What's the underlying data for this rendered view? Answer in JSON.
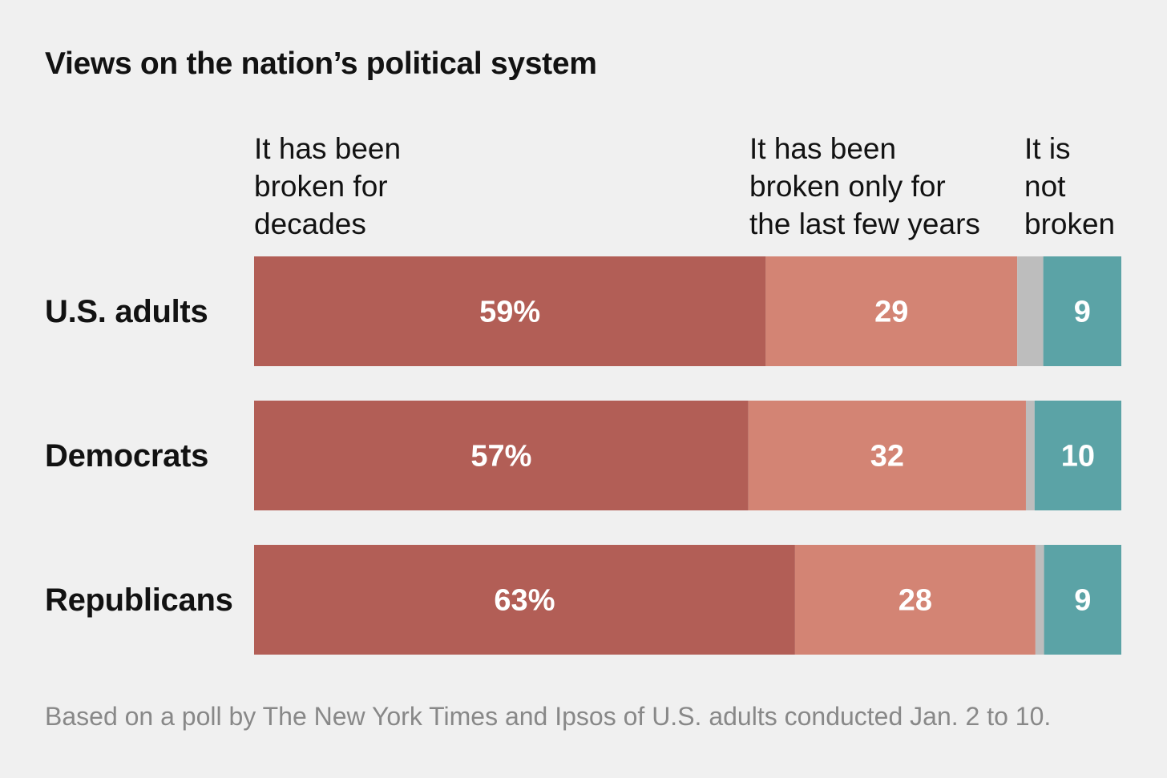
{
  "chart_data": {
    "type": "bar",
    "orientation": "horizontal",
    "stacked": true,
    "title": "Views on the nation’s political system",
    "categories": [
      "U.S. adults",
      "Democrats",
      "Republicans"
    ],
    "series": [
      {
        "name": "It has been\nbroken for\ndecades",
        "values": [
          59,
          57,
          63
        ],
        "labels": [
          "59%",
          "57%",
          "63%"
        ],
        "color": "#b25e56"
      },
      {
        "name": "It has been\nbroken only for\nthe last few years",
        "values": [
          29,
          32,
          28
        ],
        "labels": [
          "29",
          "32",
          "28"
        ],
        "color": "#d38474"
      },
      {
        "values": [
          3,
          1,
          1
        ],
        "color": "#bdbdbd"
      },
      {
        "name": "It is\nnot\nbroken",
        "values": [
          9,
          10,
          9
        ],
        "labels": [
          "9",
          "10",
          "9"
        ],
        "color": "#5ba3a6"
      }
    ],
    "xlim": [
      0,
      100
    ],
    "grid": false,
    "legend": "top"
  },
  "note": "Based on a poll by The New York Times and Ipsos of U.S. adults conducted Jan. 2 to 10."
}
